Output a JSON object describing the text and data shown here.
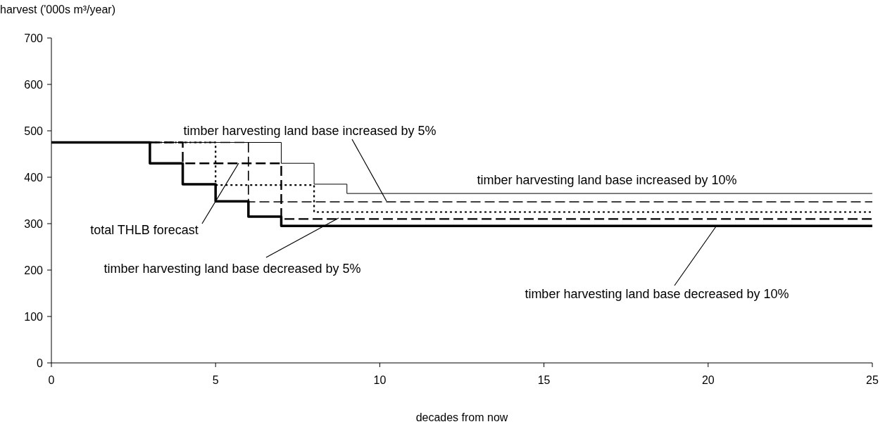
{
  "chart_data": {
    "type": "step",
    "xlabel": "decades from now",
    "ylabel": "harvest ('000s m³/year)",
    "xlim": [
      0,
      25
    ],
    "xticks": [
      0,
      5,
      10,
      15,
      20,
      25
    ],
    "ylim": [
      0,
      700
    ],
    "yticks": [
      0,
      100,
      200,
      300,
      400,
      500,
      600,
      700
    ],
    "grid": false,
    "series": [
      {
        "name": "timber harvesting land base increased by 10%",
        "color": "#000000",
        "line_style": "solid",
        "x": [
          0,
          7,
          8,
          9,
          25
        ],
        "values": [
          475,
          430,
          385,
          365,
          365
        ]
      },
      {
        "name": "timber harvesting land base increased by 5%",
        "color": "#000000",
        "line_style": "dashed",
        "x": [
          0,
          6,
          25
        ],
        "values": [
          475,
          347,
          347
        ]
      },
      {
        "name": "total THLB forecast",
        "color": "#000000",
        "line_style": "dotted",
        "x": [
          0,
          5,
          8,
          25
        ],
        "values": [
          475,
          383,
          325,
          325
        ]
      },
      {
        "name": "timber harvesting land base decreased by 5%",
        "color": "#000000",
        "line_style": "dashed",
        "x": [
          0,
          4,
          7,
          25
        ],
        "values": [
          475,
          430,
          310,
          310
        ]
      },
      {
        "name": "timber harvesting land base decreased by 10%",
        "color": "#000000",
        "line_style": "solid",
        "x": [
          0,
          3,
          4,
          5,
          6,
          7,
          25
        ],
        "values": [
          475,
          430,
          385,
          348,
          315,
          295,
          295
        ]
      }
    ]
  }
}
